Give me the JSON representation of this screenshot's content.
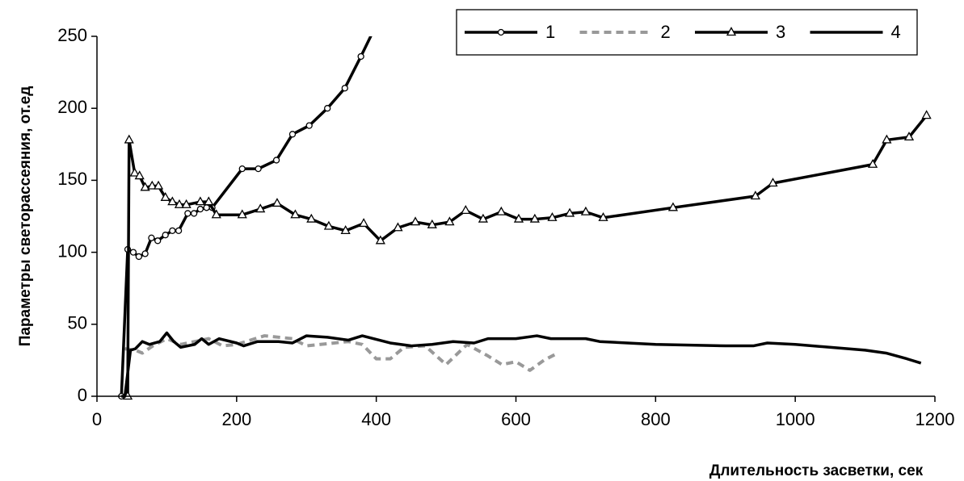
{
  "chart_data": {
    "type": "line",
    "xlabel": "Длительность засветки, сек",
    "ylabel": "Параметры светорассеяния, от.ед",
    "xlim": [
      0,
      1200
    ],
    "xticks": [
      0,
      200,
      400,
      600,
      800,
      1000,
      1200
    ],
    "ylim": [
      0,
      250
    ],
    "yticks": [
      0,
      50,
      100,
      150,
      200,
      250
    ],
    "grid": false,
    "legend": "top-right",
    "series": [
      {
        "name": "1",
        "color": "#000000",
        "marker": "circle",
        "dash": false,
        "x": [
          35,
          44,
          52,
          60,
          69,
          78,
          87,
          98,
          108,
          117,
          130,
          139,
          148,
          157,
          165,
          208,
          231,
          257,
          280,
          304,
          330,
          355,
          378,
          400
        ],
        "values": [
          0,
          102,
          100,
          97,
          99,
          110,
          108,
          112,
          115,
          115,
          127,
          127,
          130,
          131,
          131,
          158,
          158,
          164,
          182,
          188,
          200,
          214,
          236,
          258
        ]
      },
      {
        "name": "2",
        "color": "#999999",
        "marker": "none",
        "dash": true,
        "x": [
          40,
          55,
          65,
          80,
          100,
          120,
          140,
          160,
          180,
          200,
          240,
          280,
          300,
          360,
          380,
          400,
          420,
          440,
          470,
          500,
          530,
          560,
          580,
          600,
          620,
          640,
          660
        ],
        "values": [
          33,
          32,
          30,
          35,
          40,
          36,
          38,
          40,
          35,
          36,
          42,
          40,
          35,
          38,
          36,
          26,
          26,
          34,
          35,
          22,
          36,
          28,
          22,
          24,
          18,
          25,
          30
        ]
      },
      {
        "name": "3",
        "color": "#000000",
        "marker": "triangle",
        "dash": false,
        "x": [
          44,
          46,
          54,
          61,
          69,
          79,
          88,
          98,
          108,
          118,
          128,
          148,
          160,
          171,
          208,
          234,
          258,
          284,
          307,
          332,
          356,
          382,
          406,
          431,
          456,
          480,
          505,
          528,
          553,
          579,
          604,
          627,
          652,
          677,
          700,
          725,
          825,
          943,
          968,
          1111,
          1131,
          1163,
          1188
        ],
        "values": [
          0,
          178,
          155,
          153,
          145,
          146,
          146,
          138,
          135,
          133,
          133,
          135,
          135,
          126,
          126,
          130,
          134,
          126,
          123,
          118,
          115,
          120,
          108,
          117,
          121,
          119,
          121,
          129,
          123,
          128,
          123,
          123,
          124,
          127,
          128,
          124,
          131,
          139,
          148,
          161,
          178,
          180,
          195
        ]
      },
      {
        "name": "4",
        "color": "#000000",
        "marker": "none",
        "dash": false,
        "x": [
          35,
          40,
          48,
          55,
          65,
          75,
          90,
          100,
          110,
          120,
          140,
          150,
          160,
          175,
          200,
          210,
          230,
          260,
          280,
          300,
          330,
          360,
          380,
          420,
          450,
          480,
          510,
          540,
          560,
          600,
          630,
          650,
          700,
          720,
          800,
          900,
          940,
          960,
          1000,
          1100,
          1130,
          1160,
          1180
        ],
        "values": [
          0,
          0,
          32,
          33,
          38,
          36,
          38,
          44,
          38,
          34,
          36,
          40,
          36,
          40,
          37,
          35,
          38,
          38,
          37,
          42,
          41,
          39,
          42,
          37,
          35,
          36,
          38,
          37,
          40,
          40,
          42,
          40,
          40,
          38,
          36,
          35,
          35,
          37,
          36,
          32,
          30,
          26,
          23
        ]
      }
    ]
  }
}
